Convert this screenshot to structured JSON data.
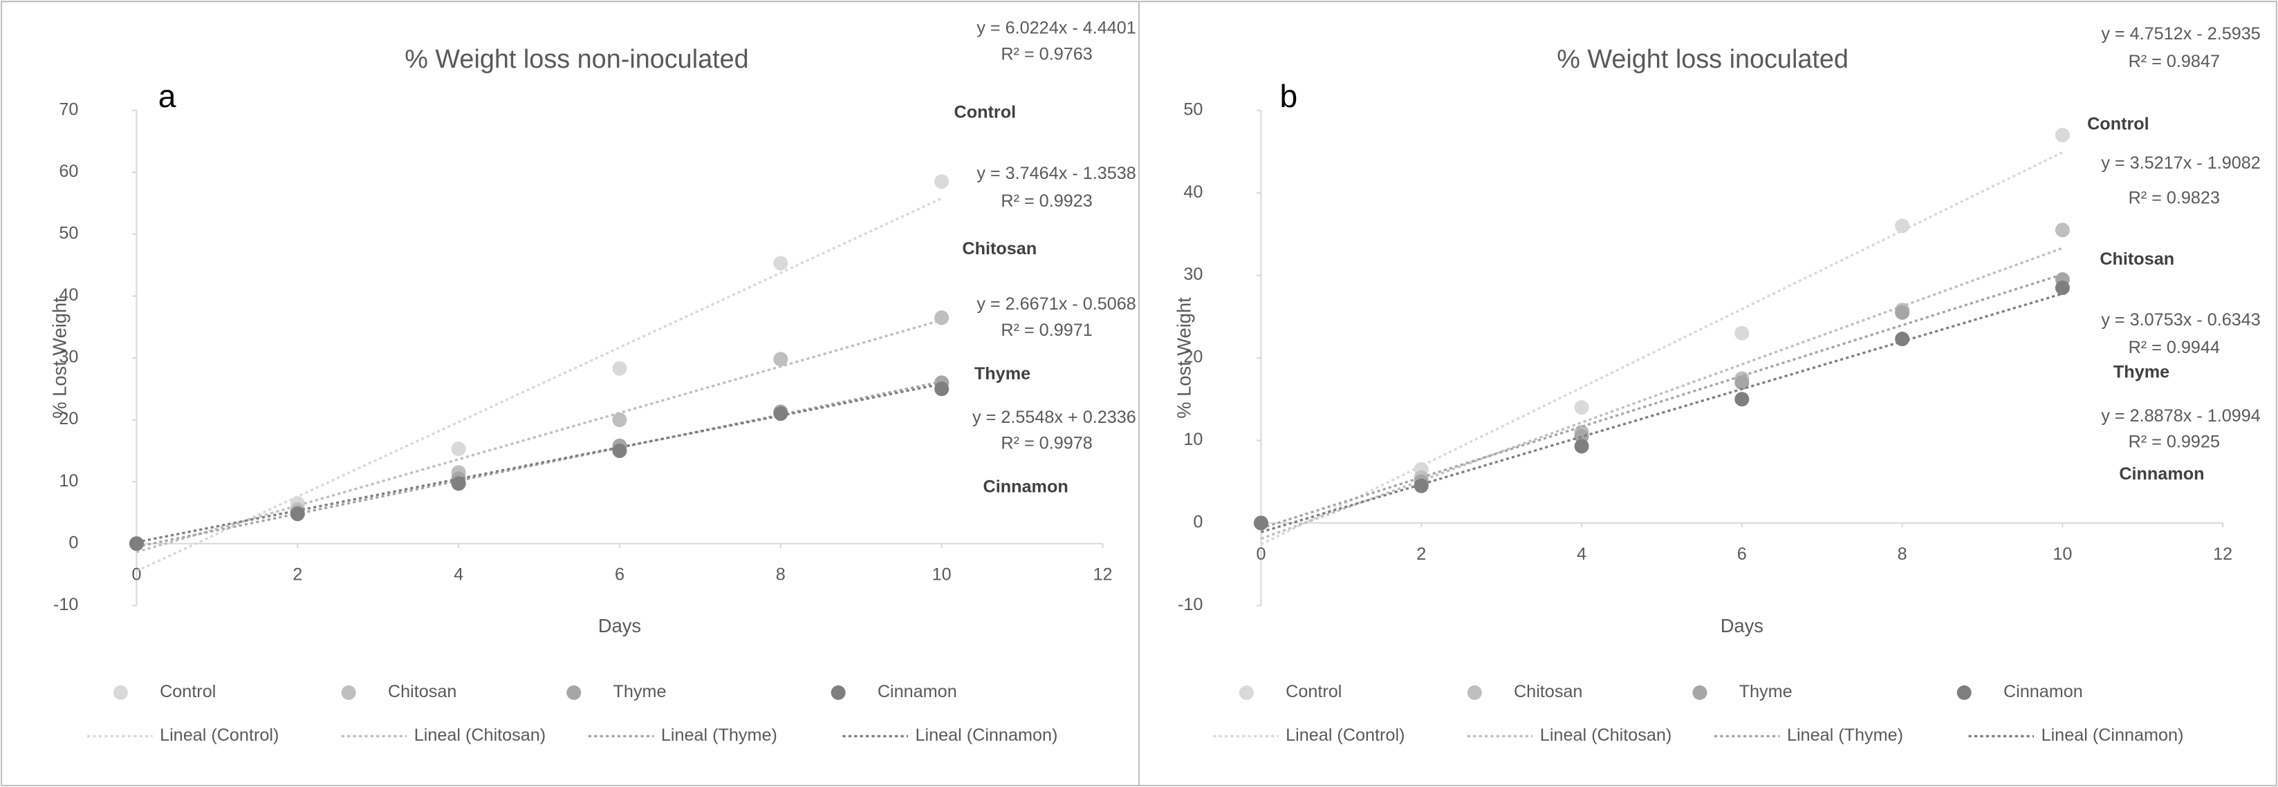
{
  "chart_data": [
    {
      "type": "scatter",
      "title": "% Weight loss non-inoculated",
      "panel_label": "a",
      "x_label": "Days",
      "y_label": "% Lost Weight",
      "x": [
        0,
        2,
        4,
        6,
        8,
        10
      ],
      "xlim": [
        0,
        12
      ],
      "xticks": [
        0,
        2,
        4,
        6,
        8,
        10,
        12
      ],
      "ylim": [
        -10,
        70
      ],
      "yticks": [
        -10,
        0,
        10,
        20,
        30,
        40,
        50,
        60,
        70
      ],
      "series": [
        {
          "name": "Control",
          "color": "#d9d9d9",
          "values": [
            0,
            6.5,
            15.3,
            28.3,
            45.3,
            58.5
          ],
          "trendline": {
            "name": "Lineal (Control)",
            "equation": "y = 6.0224x - 4.4401",
            "r_squared": "R² = 0.9763",
            "slope": 6.0224,
            "intercept": -4.4401
          }
        },
        {
          "name": "Chitosan",
          "color": "#bfbfbf",
          "values": [
            0,
            5.5,
            11.5,
            20,
            29.8,
            36.5
          ],
          "trendline": {
            "name": "Lineal (Chitosan)",
            "equation": "y = 3.7464x - 1.3538",
            "r_squared": "R² = 0.9923",
            "slope": 3.7464,
            "intercept": -1.3538
          }
        },
        {
          "name": "Thyme",
          "color": "#a6a6a6",
          "values": [
            0,
            5,
            10.5,
            15.8,
            21.3,
            26
          ],
          "trendline": {
            "name": "Lineal (Thyme)",
            "equation": "y = 2.6671x - 0.5068",
            "r_squared": "R² = 0.9971",
            "slope": 2.6671,
            "intercept": -0.5068
          }
        },
        {
          "name": "Cinnamon",
          "color": "#7f7f7f",
          "values": [
            0,
            4.8,
            9.7,
            15,
            21,
            25
          ],
          "trendline": {
            "name": "Lineal (Cinnamon)",
            "equation": "y = 2.5548x + 0.2336",
            "r_squared": "R² = 0.9978",
            "slope": 2.5548,
            "intercept": 0.2336
          }
        }
      ]
    },
    {
      "type": "scatter",
      "title": "% Weight loss inoculated",
      "panel_label": "b",
      "x_label": "Days",
      "y_label": "% Lost Weight",
      "x": [
        0,
        2,
        4,
        6,
        8,
        10
      ],
      "xlim": [
        0,
        12
      ],
      "xticks": [
        0,
        2,
        4,
        6,
        8,
        10,
        12
      ],
      "ylim": [
        -10,
        50
      ],
      "yticks": [
        -10,
        0,
        10,
        20,
        30,
        40,
        50
      ],
      "series": [
        {
          "name": "Control",
          "color": "#d9d9d9",
          "values": [
            0,
            6.5,
            14,
            23,
            36,
            47
          ],
          "trendline": {
            "name": "Lineal (Control)",
            "equation": "y = 4.7512x - 2.5935",
            "r_squared": "R² = 0.9847",
            "slope": 4.7512,
            "intercept": -2.5935
          }
        },
        {
          "name": "Chitosan",
          "color": "#bfbfbf",
          "values": [
            0,
            5.5,
            11,
            17.5,
            25.8,
            35.5
          ],
          "trendline": {
            "name": "Lineal (Chitosan)",
            "equation": "y = 3.5217x - 1.9082",
            "r_squared": "R² = 0.9823",
            "slope": 3.5217,
            "intercept": -1.9082
          }
        },
        {
          "name": "Thyme",
          "color": "#a6a6a6",
          "values": [
            0,
            5,
            10.5,
            17,
            25.5,
            29.5
          ],
          "trendline": {
            "name": "Lineal (Thyme)",
            "equation": "y = 3.0753x - 0.6343",
            "r_squared": "R² = 0.9944",
            "slope": 3.0753,
            "intercept": -0.6343
          }
        },
        {
          "name": "Cinnamon",
          "color": "#7f7f7f",
          "values": [
            0,
            4.5,
            9.3,
            15,
            22.3,
            28.5
          ],
          "trendline": {
            "name": "Lineal (Cinnamon)",
            "equation": "y = 2.8878x - 1.0994",
            "r_squared": "R² = 0.9925",
            "slope": 2.8878,
            "intercept": -1.0994
          }
        }
      ]
    }
  ]
}
